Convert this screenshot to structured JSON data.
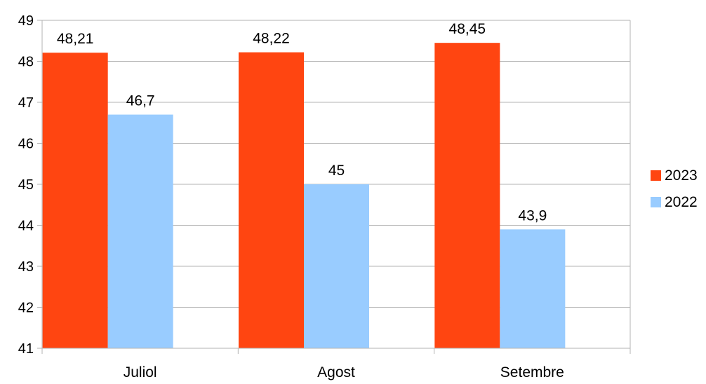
{
  "chart_data": {
    "type": "bar",
    "title": "",
    "xlabel": "",
    "ylabel": "",
    "categories": [
      "Juliol",
      "Agost",
      "Setembre"
    ],
    "series": [
      {
        "name": "2023",
        "values": [
          48.21,
          48.22,
          48.45
        ],
        "labels": [
          "48,21",
          "48,22",
          "48,45"
        ],
        "color": "#ff4511"
      },
      {
        "name": "2022",
        "values": [
          46.7,
          45,
          43.9
        ],
        "labels": [
          "46,7",
          "45",
          "43,9"
        ],
        "color": "#99ccff"
      }
    ],
    "ylim": [
      41,
      49
    ],
    "yticks": [
      "41",
      "42",
      "43",
      "44",
      "45",
      "46",
      "47",
      "48",
      "49"
    ],
    "grid": true,
    "legend_position": "right"
  }
}
